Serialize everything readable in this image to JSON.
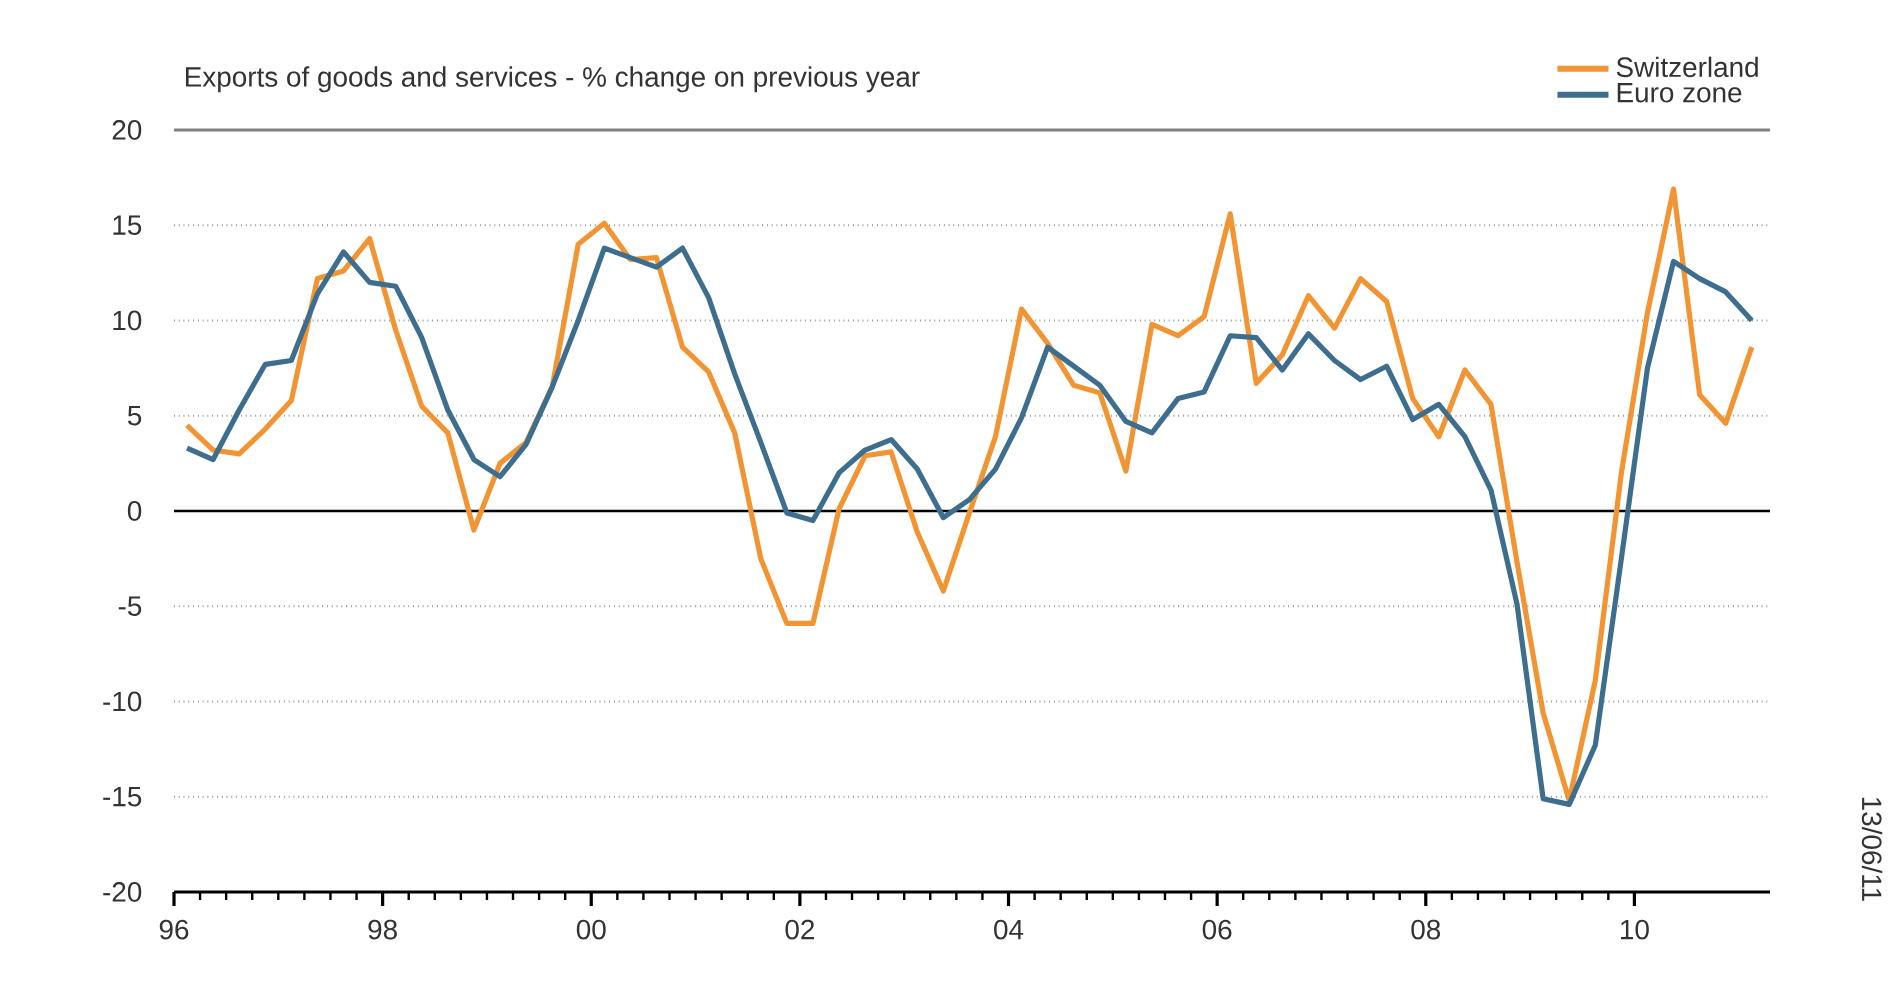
{
  "chart_data": {
    "type": "line",
    "title": "Exports of goods and services - % change on previous year",
    "x": [
      1996.125,
      1996.375,
      1996.625,
      1996.875,
      1997.125,
      1997.375,
      1997.625,
      1997.875,
      1998.125,
      1998.375,
      1998.625,
      1998.875,
      1999.125,
      1999.375,
      1999.625,
      1999.875,
      2000.125,
      2000.375,
      2000.625,
      2000.875,
      2001.125,
      2001.375,
      2001.625,
      2001.875,
      2002.125,
      2002.375,
      2002.625,
      2002.875,
      2003.125,
      2003.375,
      2003.625,
      2003.875,
      2004.125,
      2004.375,
      2004.625,
      2004.875,
      2005.125,
      2005.375,
      2005.625,
      2005.875,
      2006.125,
      2006.375,
      2006.625,
      2006.875,
      2007.125,
      2007.375,
      2007.625,
      2007.875,
      2008.125,
      2008.375,
      2008.625,
      2008.875,
      2009.125,
      2009.375,
      2009.625,
      2009.875,
      2010.125,
      2010.375,
      2010.625,
      2010.875,
      2011.125
    ],
    "series": [
      {
        "name": "Switzerland",
        "color": "#f39433",
        "values": [
          4.5,
          3.2,
          3.0,
          4.3,
          5.8,
          12.2,
          12.6,
          14.3,
          9.5,
          5.5,
          4.1,
          -1.0,
          2.5,
          3.6,
          6.5,
          14.0,
          15.1,
          13.2,
          13.3,
          8.6,
          7.3,
          4.1,
          -2.5,
          -5.9,
          -5.9,
          0.1,
          2.9,
          3.1,
          -1.1,
          -4.2,
          -0.1,
          3.9,
          10.6,
          8.8,
          6.6,
          6.2,
          2.1,
          9.8,
          9.2,
          10.2,
          15.6,
          6.7,
          8.2,
          11.3,
          9.6,
          12.2,
          11.0,
          5.9,
          3.9,
          7.4,
          5.6,
          -2.7,
          -10.6,
          -15.2,
          -8.9,
          2.0,
          10.4,
          16.9,
          6.1,
          4.6,
          8.6
        ]
      },
      {
        "name": "Euro zone",
        "color": "#3d6e8e",
        "values": [
          3.3,
          2.7,
          5.3,
          7.7,
          7.9,
          11.4,
          13.6,
          12.0,
          11.8,
          9.1,
          5.3,
          2.7,
          1.8,
          3.5,
          6.5,
          10.0,
          13.8,
          13.3,
          12.8,
          13.8,
          11.2,
          7.2,
          3.6,
          -0.1,
          -0.5,
          2.0,
          3.2,
          3.75,
          2.2,
          -0.35,
          0.6,
          2.2,
          4.9,
          8.6,
          7.6,
          6.6,
          4.7,
          4.1,
          5.9,
          6.25,
          9.2,
          9.1,
          7.4,
          9.3,
          7.9,
          6.9,
          7.6,
          4.8,
          5.6,
          3.9,
          1.1,
          -4.9,
          -15.1,
          -15.4,
          -12.3,
          -2.5,
          7.5,
          13.1,
          12.2,
          11.5,
          10.0
        ]
      }
    ],
    "xlim": [
      1996,
      2011.3
    ],
    "xticks": [
      {
        "value": 1996,
        "label": "96"
      },
      {
        "value": 1998,
        "label": "98"
      },
      {
        "value": 2000,
        "label": "00"
      },
      {
        "value": 2002,
        "label": "02"
      },
      {
        "value": 2004,
        "label": "04"
      },
      {
        "value": 2006,
        "label": "06"
      },
      {
        "value": 2008,
        "label": "08"
      },
      {
        "value": 2010,
        "label": "10"
      }
    ],
    "ylim": [
      -20,
      20
    ],
    "yticks": [
      -20,
      -15,
      -10,
      -5,
      0,
      5,
      10,
      15,
      20
    ],
    "grid": "y",
    "legend": "top right",
    "line_style": "solid",
    "ref_lines": [
      {
        "axis": "y",
        "value": 0,
        "color": "#000000"
      }
    ],
    "annotations": [
      "13/06/11"
    ]
  }
}
